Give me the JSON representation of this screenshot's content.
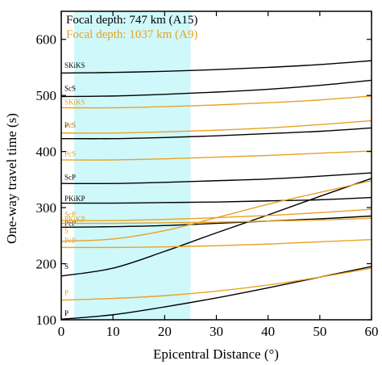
{
  "chart_data": {
    "type": "line",
    "xlabel": "Epicentral Distance (°)",
    "ylabel": "One-way travel time (s)",
    "xlim": [
      0,
      60
    ],
    "ylim": [
      100,
      650
    ],
    "xticks": [
      0,
      10,
      20,
      30,
      40,
      50,
      60
    ],
    "yticks": [
      100,
      200,
      300,
      400,
      500,
      600
    ],
    "grid": false,
    "legend_position": "top-left",
    "shaded_region": {
      "x": [
        2.5,
        25
      ],
      "color": "#cff8fa"
    },
    "legend": [
      {
        "text": "Focal depth:  747 km (A15)",
        "color": "#000000"
      },
      {
        "text": "Focal depth: 1037 km (A9)",
        "color": "#e8a224"
      }
    ],
    "series": [
      {
        "name": "P",
        "color": "#000000",
        "label_y": 104,
        "x": [
          0,
          10,
          20,
          30,
          40,
          50,
          60
        ],
        "y": [
          101,
          109,
          123,
          139,
          157,
          176,
          195
        ]
      },
      {
        "name": "S",
        "color": "#000000",
        "label_y": 188,
        "x": [
          0,
          10,
          20,
          30,
          40,
          50,
          60
        ],
        "y": [
          178,
          192,
          222,
          255,
          287,
          320,
          352
        ]
      },
      {
        "name": "PcP",
        "color": "#000000",
        "label_y": 265,
        "x": [
          0,
          10,
          20,
          30,
          40,
          50,
          60
        ],
        "y": [
          265,
          266,
          268,
          272,
          276,
          280,
          285
        ]
      },
      {
        "name": "PKiKP",
        "color": "#000000",
        "label_y": 309,
        "x": [
          0,
          10,
          20,
          30,
          40,
          50,
          60
        ],
        "y": [
          308,
          308,
          309,
          310,
          312,
          314,
          318
        ]
      },
      {
        "name": "ScP",
        "color": "#000000",
        "label_y": 347,
        "x": [
          0,
          10,
          20,
          30,
          40,
          50,
          60
        ],
        "y": [
          343,
          343,
          345,
          348,
          351,
          356,
          362
        ]
      },
      {
        "name": "PcS",
        "color": "#000000",
        "label_y": 440,
        "x": [
          0,
          10,
          20,
          30,
          40,
          50,
          60
        ],
        "y": [
          423,
          423,
          425,
          428,
          432,
          436,
          442
        ]
      },
      {
        "name": "ScS",
        "color": "#000000",
        "label_y": 505,
        "x": [
          0,
          10,
          20,
          30,
          40,
          50,
          60
        ],
        "y": [
          498,
          499,
          502,
          506,
          511,
          518,
          527
        ]
      },
      {
        "name": "SKiKS",
        "color": "#000000",
        "label_y": 546,
        "x": [
          0,
          10,
          20,
          30,
          40,
          50,
          60
        ],
        "y": [
          540,
          541,
          543,
          546,
          550,
          555,
          562
        ]
      },
      {
        "name": "P",
        "color": "#e8a224",
        "label_y": 141,
        "x": [
          0,
          10,
          20,
          30,
          40,
          50,
          60
        ],
        "y": [
          135,
          138,
          143,
          151,
          162,
          176,
          192
        ]
      },
      {
        "name": "S",
        "color": "#e8a224",
        "label_y": 251,
        "x": [
          0,
          10,
          20,
          30,
          40,
          50,
          60
        ],
        "y": [
          240,
          244,
          259,
          282,
          306,
          327,
          348
        ]
      },
      {
        "name": "PcP",
        "color": "#e8a224",
        "label_y": 234,
        "x": [
          0,
          10,
          20,
          30,
          40,
          50,
          60
        ],
        "y": [
          229,
          229,
          230,
          232,
          235,
          239,
          243
        ]
      },
      {
        "name": "PKiKP",
        "color": "#e8a224",
        "label_y": 272,
        "x": [
          0,
          10,
          20,
          30,
          40,
          50,
          60
        ],
        "y": [
          272,
          272,
          273,
          274,
          276,
          278,
          281
        ]
      },
      {
        "name": "ScP",
        "color": "#e8a224",
        "label_y": 281,
        "x": [
          0,
          10,
          20,
          30,
          40,
          50,
          60
        ],
        "y": [
          277,
          277,
          279,
          282,
          286,
          291,
          297
        ]
      },
      {
        "name": "PcS",
        "color": "#e8a224",
        "label_y": 389,
        "x": [
          0,
          10,
          20,
          30,
          40,
          50,
          60
        ],
        "y": [
          385,
          385,
          387,
          390,
          393,
          397,
          401
        ]
      },
      {
        "name": "ScS",
        "color": "#e8a224",
        "label_y": 440,
        "x": [
          0,
          10,
          20,
          30,
          40,
          50,
          60
        ],
        "y": [
          433,
          433,
          435,
          438,
          442,
          448,
          455
        ]
      },
      {
        "name": "SKiKS",
        "color": "#e8a224",
        "label_y": 481,
        "x": [
          0,
          10,
          20,
          30,
          40,
          50,
          60
        ],
        "y": [
          478,
          478,
          480,
          483,
          487,
          492,
          499
        ]
      }
    ]
  }
}
